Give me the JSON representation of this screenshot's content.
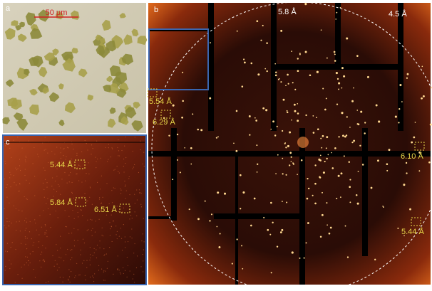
{
  "panels": {
    "a": {
      "label": "a",
      "scale_bar": "50 μm"
    },
    "b": {
      "label": "b",
      "resolution_labels": [
        "5.8 Å",
        "4.5 Å",
        "5.54 Å",
        "6.29 Å",
        "6.10 Å",
        "5.44 Å"
      ]
    },
    "c": {
      "label": "c",
      "resolution_labels": [
        "5.44 Å",
        "5.84 Å",
        "6.51 Å"
      ]
    }
  }
}
